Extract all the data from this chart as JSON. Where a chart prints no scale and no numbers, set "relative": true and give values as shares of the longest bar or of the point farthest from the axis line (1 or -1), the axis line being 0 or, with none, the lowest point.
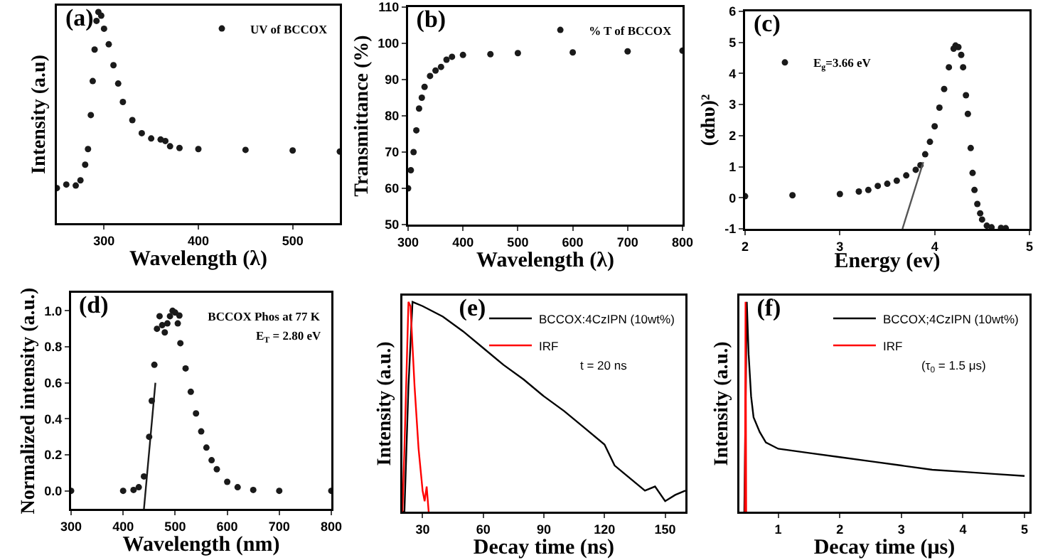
{
  "chart_data": [
    {
      "type": "scatter",
      "title": "(a)",
      "xlabel": "Wavelength (λ)",
      "ylabel": "Intensity (a.u)",
      "relative": true,
      "tick_labels": "x",
      "marker": "circle",
      "legend": "top right",
      "xlim": [
        250,
        550
      ],
      "xticks": [
        300,
        400,
        500
      ],
      "series": [
        {
          "name": "UV of BCCOX",
          "color": "#1a1a1a",
          "x": [
            250,
            260,
            270,
            275,
            280,
            283,
            286,
            288,
            290,
            292,
            294,
            297,
            300,
            305,
            310,
            315,
            320,
            330,
            340,
            350,
            360,
            365,
            370,
            380,
            400,
            450,
            500,
            550
          ],
          "values": [
            0.166,
            0.183,
            0.178,
            0.203,
            0.277,
            0.351,
            0.512,
            0.673,
            0.822,
            0.958,
            1,
            0.983,
            0.921,
            0.847,
            0.748,
            0.661,
            0.574,
            0.488,
            0.426,
            0.401,
            0.396,
            0.389,
            0.364,
            0.356,
            0.351,
            0.347,
            0.344,
            0.339
          ]
        }
      ]
    },
    {
      "type": "scatter",
      "title": "(b)",
      "xlabel": "Wavelength (λ)",
      "ylabel": "Transmittance (%)",
      "marker": "circle",
      "legend": "top right",
      "xlim": [
        300,
        800
      ],
      "xticks": [
        300,
        400,
        500,
        600,
        700,
        800
      ],
      "ylim": [
        50,
        110
      ],
      "yticks": [
        50,
        60,
        70,
        80,
        90,
        100,
        110
      ],
      "series": [
        {
          "name": "% T of BCCOX",
          "color": "#1a1a1a",
          "x": [
            300,
            305,
            310,
            315,
            320,
            325,
            330,
            340,
            350,
            360,
            370,
            380,
            400,
            450,
            500,
            600,
            700,
            800
          ],
          "values": [
            60,
            65,
            70,
            76,
            82,
            85,
            88,
            91,
            92.5,
            93.5,
            95.5,
            96.3,
            96.8,
            97,
            97.3,
            97.5,
            97.8,
            98
          ]
        }
      ]
    },
    {
      "type": "scatter",
      "title": "(c)",
      "xlabel": "Energy (ev)",
      "ylabel": "(αhυ)²",
      "marker": "circle",
      "legend": "top left",
      "xlim": [
        2,
        5
      ],
      "xticks": [
        2,
        3,
        4,
        5
      ],
      "ylim": [
        -1,
        6
      ],
      "yticks": [
        -1,
        0,
        1,
        2,
        3,
        4,
        5,
        6
      ],
      "series": [
        {
          "name": "E$_{g}$=3.66 eV",
          "color": "#1a1a1a",
          "x": [
            2,
            2.5,
            3,
            3.2,
            3.3,
            3.4,
            3.5,
            3.6,
            3.7,
            3.8,
            3.85,
            3.9,
            3.95,
            4,
            4.05,
            4.1,
            4.15,
            4.2,
            4.22,
            4.25,
            4.28,
            4.3,
            4.33,
            4.35,
            4.38,
            4.4,
            4.42,
            4.45,
            4.48,
            4.5,
            4.55,
            4.6,
            4.7,
            4.75
          ],
          "values": [
            0.05,
            0.08,
            0.12,
            0.2,
            0.25,
            0.38,
            0.45,
            0.55,
            0.72,
            0.9,
            1.05,
            1.4,
            1.8,
            2.3,
            2.9,
            3.5,
            4.2,
            4.8,
            4.9,
            4.85,
            4.6,
            4.2,
            3.3,
            2.7,
            1.6,
            0.8,
            0.25,
            -0.2,
            -0.5,
            -0.7,
            -0.9,
            -0.95,
            -0.97,
            -0.98
          ]
        },
        {
          "type": "line",
          "marker": "none",
          "color": "#555555",
          "x": [
            3.66,
            3.88
          ],
          "values": [
            -1,
            1.15
          ]
        }
      ]
    },
    {
      "type": "scatter",
      "title": "(d)",
      "xlabel": "Wavelength (nm)",
      "ylabel": "Normalized intensity (a.u.)",
      "marker": "circle",
      "legend": "top right",
      "annotations": [
        "E$_{T}$ = 2.80 eV"
      ],
      "xlim": [
        300,
        800
      ],
      "xticks": [
        300,
        400,
        500,
        600,
        700,
        800
      ],
      "ylim": [
        -0.1,
        1.1
      ],
      "yticks": [
        {
          "value": 0,
          "label": "0.0"
        },
        {
          "value": 0.2,
          "label": "0.2"
        },
        {
          "value": 0.4,
          "label": "0.4"
        },
        {
          "value": 0.6,
          "label": "0.6"
        },
        {
          "value": 0.8,
          "label": "0.8"
        },
        {
          "value": 1,
          "label": "1.0"
        }
      ],
      "series": [
        {
          "name": "BCCOX Phos at 77 K",
          "color": "#1a1a1a",
          "x": [
            300,
            400,
            420,
            430,
            440,
            450,
            455,
            460,
            465,
            470,
            475,
            480,
            485,
            490,
            495,
            500,
            505,
            510,
            520,
            530,
            540,
            550,
            560,
            570,
            580,
            600,
            620,
            650,
            700,
            800
          ],
          "values": [
            0,
            0,
            0.005,
            0.02,
            0.08,
            0.3,
            0.5,
            0.7,
            0.9,
            0.97,
            0.92,
            0.88,
            0.93,
            0.97,
            1,
            0.99,
            0.93,
            0.82,
            0.68,
            0.55,
            0.43,
            0.33,
            0.24,
            0.17,
            0.12,
            0.05,
            0.02,
            0.005,
            0,
            0
          ]
        },
        {
          "type": "line",
          "marker": "none",
          "color": "#1a1a1a",
          "x": [
            440,
            462
          ],
          "values": [
            -0.1,
            0.6
          ]
        }
      ]
    },
    {
      "type": "line",
      "title": "(e)",
      "xlabel": "Decay time (ns)",
      "ylabel": "Intensity (a.u.)",
      "relative": true,
      "tick_labels": "x",
      "legend": "top right",
      "annotations": [
        "t = 20 ns"
      ],
      "xlim": [
        20,
        160
      ],
      "xticks": [
        30,
        60,
        90,
        120,
        150
      ],
      "series": [
        {
          "name": "BCCOX:4CzIPN (10wt%)",
          "color": "#000000",
          "x": [
            20,
            21,
            23,
            25,
            30,
            40,
            50,
            60,
            70,
            80,
            90,
            100,
            110,
            120,
            125,
            130,
            140,
            145,
            150,
            155,
            160
          ],
          "values": [
            0,
            0,
            0.6,
            1,
            0.98,
            0.93,
            0.86,
            0.78,
            0.7,
            0.63,
            0.55,
            0.48,
            0.4,
            0.32,
            0.22,
            0.18,
            0.1,
            0.12,
            0.05,
            0.08,
            0.1
          ]
        },
        {
          "name": "IRF",
          "color": "#ff0000",
          "x": [
            20,
            21,
            23,
            24,
            26,
            28,
            29,
            30,
            31,
            32,
            33
          ],
          "values": [
            0,
            0.3,
            1,
            0.98,
            0.6,
            0.3,
            0.2,
            0.1,
            0.05,
            0.12,
            0
          ]
        }
      ]
    },
    {
      "type": "line",
      "title": "(f)",
      "xlabel": "Decay time (μs)",
      "ylabel": "Intensity (a.u.)",
      "relative": true,
      "tick_labels": "x",
      "legend": "top right",
      "annotations": [
        "(τ$_{0}$ = 1.5 μs)"
      ],
      "xlim": [
        0.37,
        5.08
      ],
      "xticks": [
        1,
        2,
        3,
        4,
        5
      ],
      "series": [
        {
          "name": "BCCOX;4CzIPN (10wt%)",
          "color": "#000000",
          "x": [
            0.45,
            0.49,
            0.52,
            0.56,
            0.6,
            0.7,
            0.8,
            1,
            1.5,
            2,
            2.5,
            3,
            3.5,
            4,
            4.5,
            5
          ],
          "values": [
            0,
            1,
            0.75,
            0.55,
            0.45,
            0.38,
            0.33,
            0.3,
            0.28,
            0.26,
            0.24,
            0.22,
            0.2,
            0.19,
            0.18,
            0.17
          ]
        },
        {
          "name": "IRF",
          "color": "#ff0000",
          "x": [
            0.46,
            0.47,
            0.48
          ],
          "values": [
            0,
            1,
            0
          ]
        }
      ]
    }
  ]
}
